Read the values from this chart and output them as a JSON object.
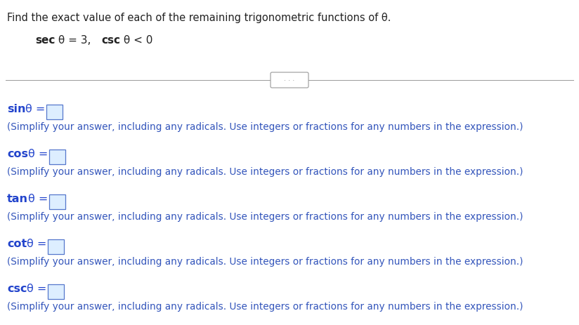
{
  "title": "Find the exact value of each of the remaining trigonometric functions of θ.",
  "bg_color": "#ffffff",
  "text_color_black": "#222222",
  "text_color_blue": "#2244cc",
  "hint_color": "#3355bb",
  "divider_color": "#999999",
  "box_edge_color": "#5577cc",
  "box_face_color": "#ddeeff",
  "title_fontsize": 10.5,
  "given_fontsize": 11.0,
  "label_fontsize": 11.5,
  "hint_fontsize": 9.8,
  "fig_width": 8.24,
  "fig_height": 4.64,
  "rows": [
    {
      "label": "sin θ ="
    },
    {
      "label": "cos θ ="
    },
    {
      "label": "tan θ ="
    },
    {
      "label": "cot θ ="
    },
    {
      "label": "csc θ ="
    }
  ],
  "hint": "(Simplify your answer, including any radicals. Use integers or fractions for any numbers in the expression.)"
}
